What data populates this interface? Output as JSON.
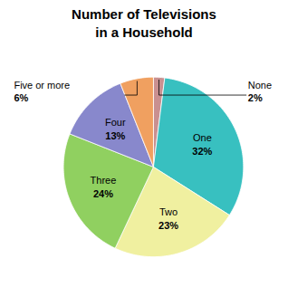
{
  "chart_data": {
    "type": "pie",
    "title": "Number of Televisions\nin a Household",
    "categories": [
      "None",
      "One",
      "Two",
      "Three",
      "Four",
      "Five or more"
    ],
    "values": [
      2,
      32,
      23,
      24,
      13,
      6
    ],
    "value_labels": [
      "2%",
      "32%",
      "23%",
      "24%",
      "13%",
      "6%"
    ],
    "colors": [
      "#c99090",
      "#38c0c0",
      "#f0f0a0",
      "#90d060",
      "#8888cc",
      "#f0a060"
    ],
    "data_labels": true
  }
}
